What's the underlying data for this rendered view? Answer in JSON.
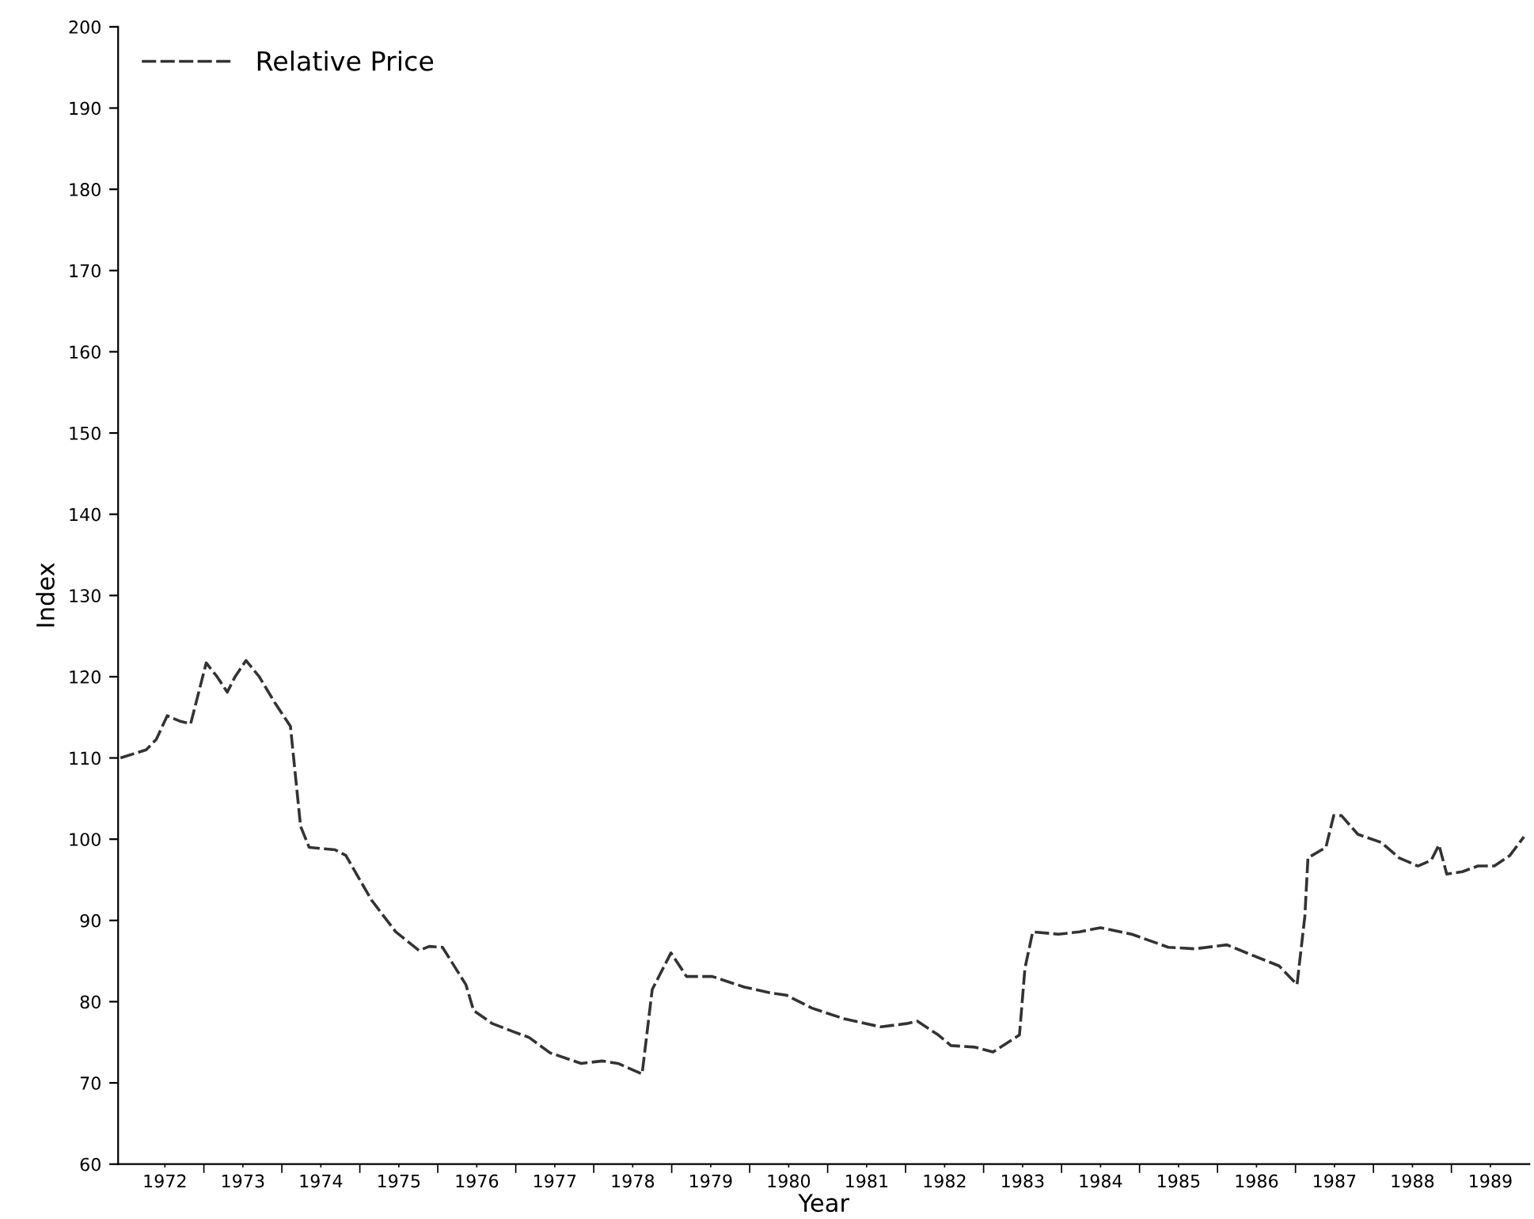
{
  "chart_data": {
    "type": "line",
    "xlabel": "Year",
    "ylabel": "Index",
    "series": [
      {
        "name": "Relative Price",
        "color": "#333333",
        "line_style": "dashed",
        "x": [
          1971.93,
          1972.26,
          1972.39,
          1972.53,
          1972.7,
          1972.83,
          1973.03,
          1973.17,
          1973.3,
          1973.4,
          1973.54,
          1973.71,
          1973.91,
          1974.11,
          1974.24,
          1974.35,
          1974.68,
          1974.82,
          1975.15,
          1975.46,
          1975.76,
          1975.89,
          1976.06,
          1976.36,
          1976.46,
          1976.7,
          1976.97,
          1977.17,
          1977.44,
          1977.84,
          1978.11,
          1978.31,
          1978.62,
          1978.75,
          1978.99,
          1979.19,
          1979.52,
          1979.93,
          1980.26,
          1980.47,
          1980.8,
          1981.21,
          1981.68,
          1982.01,
          1982.15,
          1982.42,
          1982.58,
          1982.89,
          1983.12,
          1983.46,
          1983.53,
          1983.63,
          1983.96,
          1984.23,
          1984.5,
          1984.9,
          1985.37,
          1985.71,
          1986.12,
          1986.45,
          1986.79,
          1987.02,
          1987.12,
          1987.16,
          1987.39,
          1987.49,
          1987.59,
          1987.8,
          1988.1,
          1988.33,
          1988.57,
          1988.74,
          1988.84,
          1988.94,
          1989.14,
          1989.34,
          1989.55,
          1989.75,
          1989.93
        ],
        "values": [
          110,
          111,
          112.3,
          115.2,
          114.5,
          114.2,
          121.7,
          120,
          118.1,
          120,
          122,
          120,
          116.8,
          113.9,
          101.6,
          99,
          98.7,
          98,
          92.5,
          88.6,
          86.3,
          86.8,
          86.7,
          82.1,
          78.9,
          77.3,
          76.3,
          75.6,
          73.7,
          72.4,
          72.7,
          72.4,
          71.1,
          81.5,
          86,
          83.1,
          83.1,
          81.8,
          81.1,
          80.8,
          79.2,
          77.9,
          76.9,
          77.3,
          77.6,
          75.9,
          74.6,
          74.4,
          73.8,
          75.9,
          84.1,
          88.6,
          88.3,
          88.6,
          89.1,
          88.3,
          86.7,
          86.5,
          87,
          85.7,
          84.4,
          82.1,
          90.5,
          97.7,
          99,
          102.9,
          102.9,
          100.6,
          99.6,
          97.7,
          96.7,
          97.4,
          99.3,
          95.7,
          96,
          96.7,
          96.7,
          98,
          100.3
        ]
      }
    ],
    "xlim": [
      1971.9,
      1990
    ],
    "xticks": [
      {
        "value": 1972.5,
        "label": "1972"
      },
      {
        "value": 1973.5,
        "label": "1973"
      },
      {
        "value": 1974.5,
        "label": "1974"
      },
      {
        "value": 1975.5,
        "label": "1975"
      },
      {
        "value": 1976.5,
        "label": "1976"
      },
      {
        "value": 1977.5,
        "label": "1977"
      },
      {
        "value": 1978.5,
        "label": "1978"
      },
      {
        "value": 1979.5,
        "label": "1979"
      },
      {
        "value": 1980.5,
        "label": "1980"
      },
      {
        "value": 1981.5,
        "label": "1981"
      },
      {
        "value": 1982.5,
        "label": "1982"
      },
      {
        "value": 1983.5,
        "label": "1983"
      },
      {
        "value": 1984.5,
        "label": "1984"
      },
      {
        "value": 1985.5,
        "label": "1985"
      },
      {
        "value": 1986.5,
        "label": "1986"
      },
      {
        "value": 1987.5,
        "label": "1987"
      },
      {
        "value": 1988.5,
        "label": "1988"
      },
      {
        "value": 1989.5,
        "label": "1989"
      }
    ],
    "ylim": [
      60,
      200
    ],
    "yticks": [
      60,
      70,
      80,
      90,
      100,
      110,
      120,
      130,
      140,
      150,
      160,
      170,
      180,
      190,
      200
    ],
    "grid": false,
    "legend": "top left",
    "marker": "none"
  }
}
